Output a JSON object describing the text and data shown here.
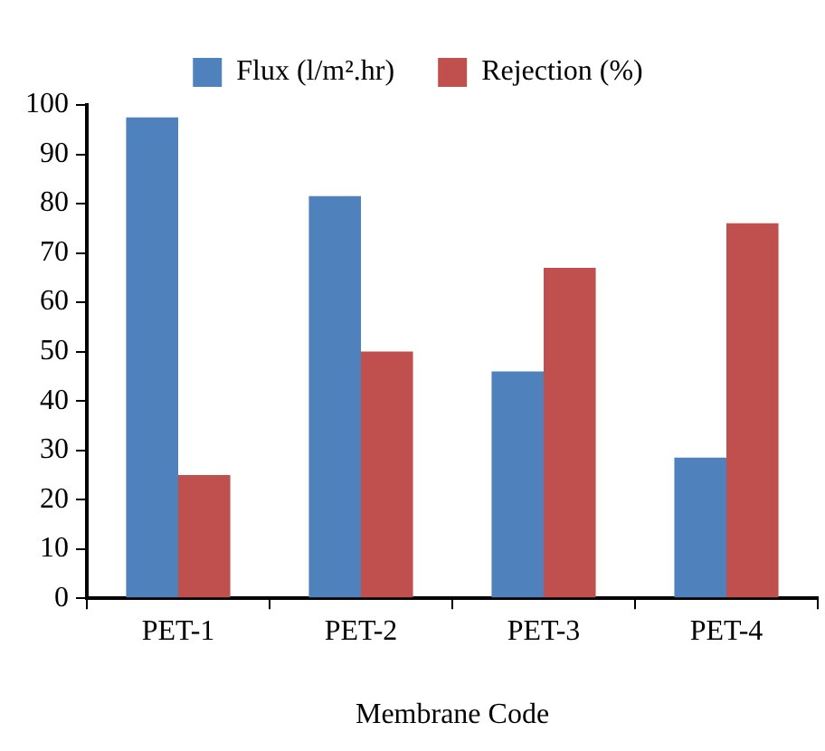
{
  "chart_data": {
    "type": "bar",
    "xlabel": "Membrane Code",
    "categories": [
      "PET-1",
      "PET-2",
      "PET-3",
      "PET-4"
    ],
    "series": [
      {
        "name": "Flux (l/m².hr)",
        "color": "#4f81bd",
        "values": [
          97.5,
          81.5,
          46,
          28.5
        ]
      },
      {
        "name": "Rejection (%)",
        "color": "#c0504d",
        "values": [
          25,
          50,
          67,
          76
        ]
      }
    ],
    "ylim": [
      0,
      100
    ],
    "yticks": [
      0,
      10,
      20,
      30,
      40,
      50,
      60,
      70,
      80,
      90,
      100
    ],
    "grid": false,
    "legend": "top"
  }
}
